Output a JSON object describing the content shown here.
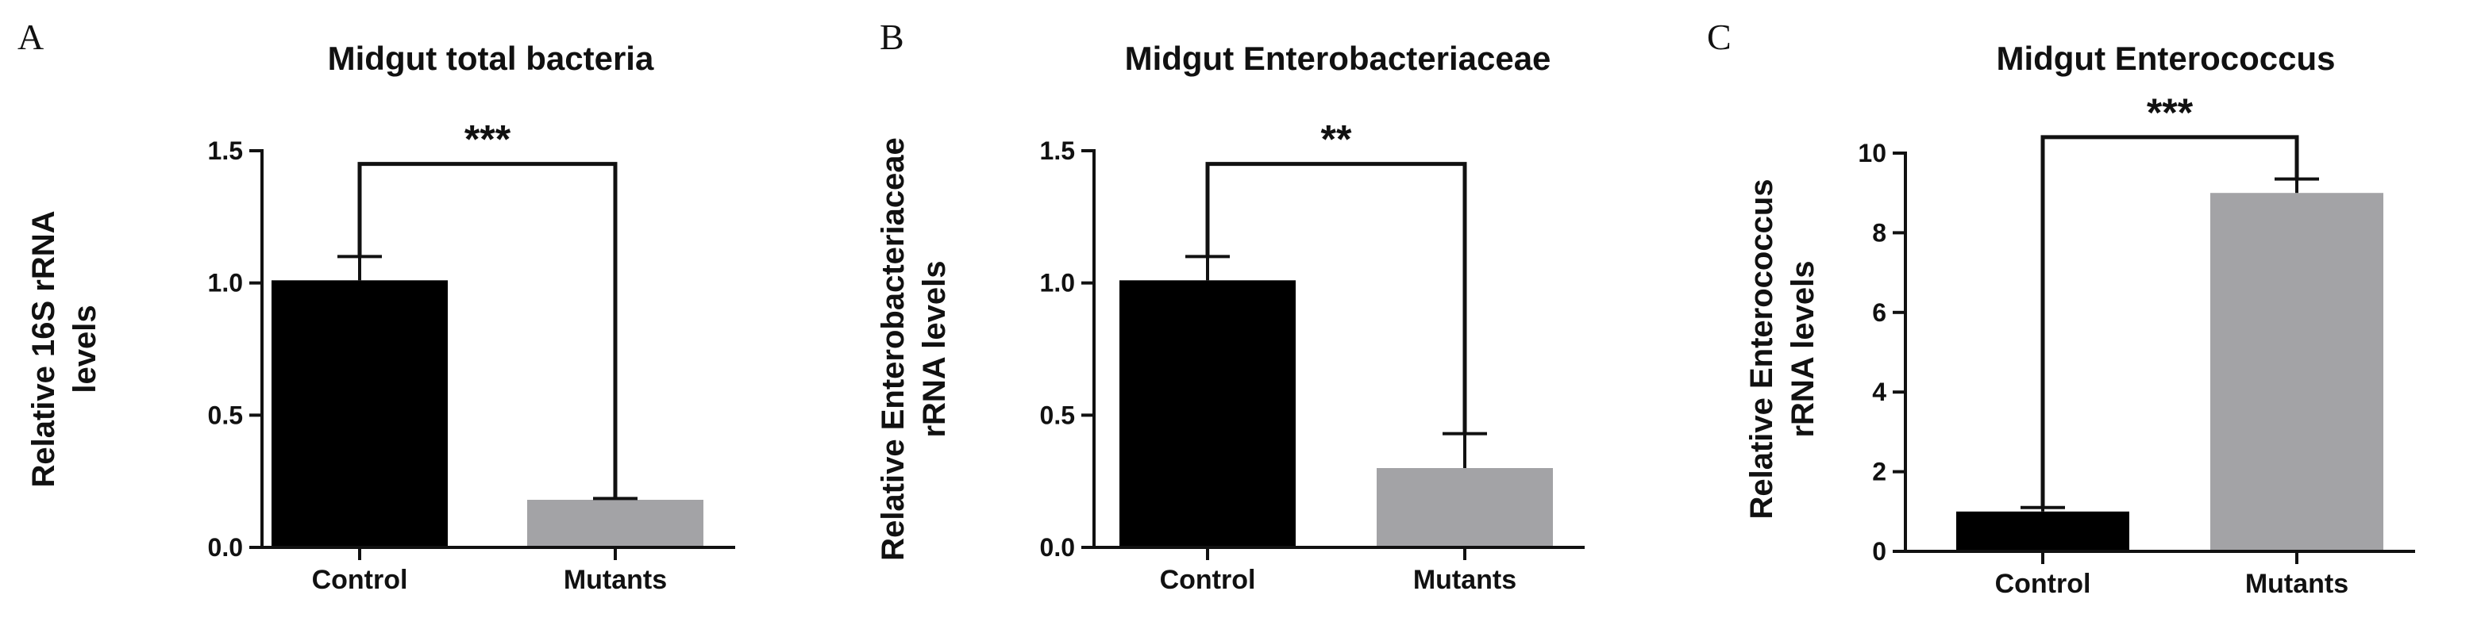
{
  "chart_data": [
    {
      "type": "bar",
      "panel": "A",
      "title": "Midgut total bacteria",
      "ylabel": [
        "Relative 16S rRNA",
        "levels"
      ],
      "xlabel": "",
      "categories": [
        "Control",
        "Mutants"
      ],
      "values": [
        1.01,
        0.18
      ],
      "errors": [
        0.09,
        0.005
      ],
      "colors": [
        "#000000",
        "#a3a3a6"
      ],
      "ylim": [
        0,
        1.5
      ],
      "yticks": [
        0.0,
        0.5,
        1.0,
        1.5
      ],
      "ytick_labels": [
        "0.0",
        "0.5",
        "1.0",
        "1.5"
      ],
      "significance": "***",
      "bracket_y": 1.45,
      "grid": false
    },
    {
      "type": "bar",
      "panel": "B",
      "title": "Midgut Enterobacteriaceae",
      "ylabel": [
        "Relative Enterobacteriaceae",
        "rRNA levels"
      ],
      "xlabel": "",
      "categories": [
        "Control",
        "Mutants"
      ],
      "values": [
        1.01,
        0.3
      ],
      "errors": [
        0.09,
        0.13
      ],
      "colors": [
        "#000000",
        "#a3a3a6"
      ],
      "ylim": [
        0,
        1.5
      ],
      "yticks": [
        0.0,
        0.5,
        1.0,
        1.5
      ],
      "ytick_labels": [
        "0.0",
        "0.5",
        "1.0",
        "1.5"
      ],
      "significance": "**",
      "bracket_y": 1.45,
      "grid": false
    },
    {
      "type": "bar",
      "panel": "C",
      "title": "Midgut Enterococcus",
      "ylabel": [
        "Relative Enterococcus",
        "rRNA levels"
      ],
      "xlabel": "",
      "categories": [
        "Control",
        "Mutants"
      ],
      "values": [
        1.0,
        9.0
      ],
      "errors": [
        0.1,
        0.35
      ],
      "colors": [
        "#000000",
        "#a3a3a6"
      ],
      "ylim": [
        0,
        10
      ],
      "yticks": [
        0,
        2,
        4,
        6,
        8,
        10
      ],
      "ytick_labels": [
        "0",
        "2",
        "4",
        "6",
        "8",
        "10"
      ],
      "significance": "***",
      "bracket_y": 10.4,
      "grid": false
    }
  ]
}
